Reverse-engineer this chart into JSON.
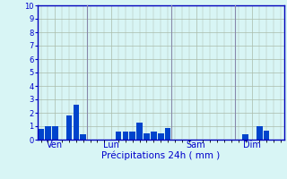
{
  "title": "Précipitations 24h ( mm )",
  "bar_color": "#0044cc",
  "background_color": "#d8f5f5",
  "grid_color": "#aabbaa",
  "axis_color": "#0000bb",
  "text_color": "#0000cc",
  "ylim": [
    0,
    10
  ],
  "yticks": [
    0,
    1,
    2,
    3,
    4,
    5,
    6,
    7,
    8,
    9,
    10
  ],
  "day_labels": [
    "Ven",
    "Lun",
    "Sam",
    "Dim"
  ],
  "day_positions": [
    2,
    10,
    22,
    30
  ],
  "vline_positions": [
    6.5,
    18.5,
    27.5
  ],
  "vline_color": "#8888aa",
  "n_bars": 35,
  "bars": [
    0.8,
    1.0,
    1.0,
    0.0,
    1.8,
    2.6,
    0.4,
    0.0,
    0.0,
    0.0,
    0.0,
    0.6,
    0.6,
    0.6,
    1.3,
    0.5,
    0.6,
    0.5,
    0.9,
    0.0,
    0.0,
    0.0,
    0.0,
    0.0,
    0.0,
    0.0,
    0.0,
    0.0,
    0.0,
    0.4,
    0.0,
    1.0,
    0.7,
    0.0,
    0.0
  ]
}
